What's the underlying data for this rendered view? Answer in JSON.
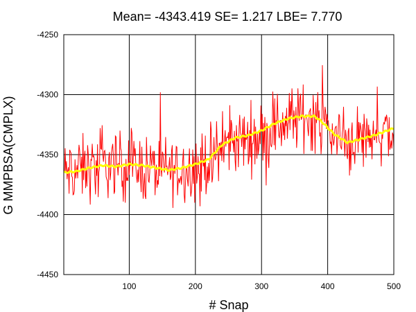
{
  "chart_data": {
    "type": "line",
    "title": "Mean= -4343.419 SE= 1.217 LBE= 7.770",
    "xlabel": "# Snap",
    "ylabel": "G MMPBSA(CMPLX)",
    "xlim": [
      1,
      500
    ],
    "ylim": [
      -4450,
      -4250
    ],
    "x_ticks": [
      100,
      200,
      300,
      400,
      500
    ],
    "y_ticks": [
      -4450,
      -4400,
      -4350,
      -4300,
      -4250
    ],
    "grid": true,
    "legend": "none",
    "series": [
      {
        "kind": "raw",
        "color": "#ff0000",
        "x": [
          1,
          25,
          50,
          75,
          100,
          125,
          150,
          175,
          200,
          225,
          250,
          275,
          300,
          325,
          350,
          375,
          400,
          425,
          450,
          475,
          500
        ],
        "values": [
          -4366,
          -4363,
          -4360,
          -4358,
          -4359,
          -4361,
          -4363,
          -4361,
          -4360,
          -4355,
          -4340,
          -4337,
          -4334,
          -4325,
          -4320,
          -4317,
          -4328,
          -4340,
          -4335,
          -4332,
          -4330
        ],
        "noise_amplitude": 17
      },
      {
        "kind": "running-average",
        "color": "#ffff00",
        "x": [
          1,
          20,
          40,
          60,
          80,
          100,
          120,
          140,
          160,
          180,
          200,
          210,
          220,
          240,
          260,
          280,
          300,
          320,
          340,
          360,
          380,
          390,
          410,
          430,
          450,
          470,
          490,
          500
        ],
        "values": [
          -4365,
          -4364,
          -4361,
          -4359,
          -4360,
          -4358,
          -4359,
          -4361,
          -4363,
          -4361,
          -4358,
          -4356,
          -4354,
          -4342,
          -4336,
          -4334,
          -4330,
          -4324,
          -4320,
          -4318,
          -4318,
          -4322,
          -4333,
          -4340,
          -4337,
          -4334,
          -4330,
          -4328
        ]
      }
    ]
  }
}
